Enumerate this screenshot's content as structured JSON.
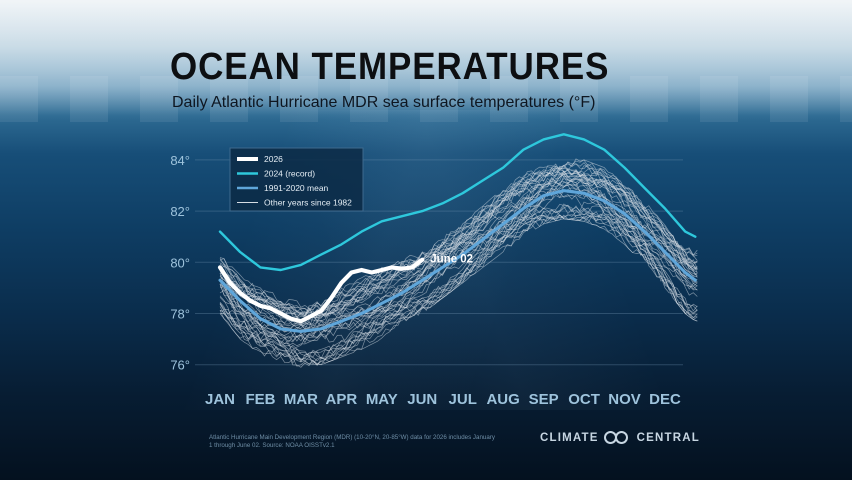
{
  "header": {
    "title": "OCEAN TEMPERATURES",
    "subtitle": "Daily Atlantic Hurricane MDR sea surface temperatures (°F)"
  },
  "footer": {
    "note": "Atlantic Hurricane Main Development Region (MDR) (10-20°N, 20-85°W) data for 2026 includes January 1 through June 02. Source: NOAA OISSTv2.1",
    "logo_left": "CLIMATE",
    "logo_right": "CENTRAL",
    "logo_icon": "linked-circles-icon"
  },
  "colors": {
    "current": "#ffffff",
    "record": "#2ec8dc",
    "mean": "#5fa6da",
    "others": "#d6dde3",
    "axis_text": "#9ec3dc"
  },
  "chart_data": {
    "type": "line",
    "title": "OCEAN TEMPERATURES",
    "subtitle": "Daily Atlantic Hurricane MDR sea surface temperatures (°F)",
    "xlabel": "",
    "ylabel": "",
    "ylim": [
      75.5,
      85.5
    ],
    "yticks": [
      76,
      78,
      80,
      82,
      84
    ],
    "ytick_labels": [
      "76°",
      "78°",
      "80°",
      "82°",
      "84°"
    ],
    "categories": [
      "JAN",
      "FEB",
      "MAR",
      "APR",
      "MAY",
      "JUN",
      "JUL",
      "AUG",
      "SEP",
      "OCT",
      "NOV",
      "DEC"
    ],
    "grid": true,
    "legend": {
      "placement": "top-left",
      "entries": [
        "2026",
        "2024 (record)",
        "1991-2020 mean",
        "Other years since 1982"
      ]
    },
    "annotation": "June 02",
    "series": [
      {
        "name": "2026",
        "role": "current",
        "x": [
          0,
          0.25,
          0.5,
          0.75,
          1,
          1.25,
          1.5,
          1.75,
          2,
          2.25,
          2.5,
          2.75,
          3,
          3.25,
          3.5,
          3.75,
          4,
          4.25,
          4.5,
          4.75,
          5.0
        ],
        "y": [
          79.8,
          79.2,
          78.8,
          78.5,
          78.3,
          78.2,
          78.0,
          77.8,
          77.7,
          77.9,
          78.1,
          78.6,
          79.2,
          79.6,
          79.7,
          79.6,
          79.7,
          79.8,
          79.75,
          79.8,
          80.1
        ]
      },
      {
        "name": "2024 (record)",
        "role": "record",
        "x": [
          0,
          0.5,
          1,
          1.5,
          2,
          2.5,
          3,
          3.5,
          4,
          4.5,
          5,
          5.5,
          6,
          6.5,
          7,
          7.5,
          8,
          8.5,
          9,
          9.5,
          10,
          10.5,
          11,
          11.5,
          11.75
        ],
        "y": [
          81.2,
          80.4,
          79.8,
          79.7,
          79.9,
          80.3,
          80.7,
          81.2,
          81.6,
          81.8,
          82.0,
          82.3,
          82.7,
          83.2,
          83.7,
          84.4,
          84.8,
          85.0,
          84.8,
          84.4,
          83.7,
          82.9,
          82.1,
          81.2,
          81.0
        ]
      },
      {
        "name": "1991-2020 mean",
        "role": "mean",
        "x": [
          0,
          0.5,
          1,
          1.5,
          2,
          2.5,
          3,
          3.5,
          4,
          4.5,
          5,
          5.5,
          6,
          6.5,
          7,
          7.5,
          8,
          8.5,
          9,
          9.5,
          10,
          10.5,
          11,
          11.5,
          11.75
        ],
        "y": [
          79.3,
          78.5,
          77.8,
          77.4,
          77.3,
          77.4,
          77.7,
          78.0,
          78.4,
          78.8,
          79.3,
          79.8,
          80.3,
          80.9,
          81.5,
          82.1,
          82.6,
          82.8,
          82.7,
          82.4,
          81.9,
          81.2,
          80.4,
          79.6,
          79.3
        ]
      }
    ],
    "other_years_band": {
      "label": "Other years since 1982",
      "count": 40,
      "x": [
        0,
        0.5,
        1,
        1.5,
        2,
        2.5,
        3,
        3.5,
        4,
        4.5,
        5,
        5.5,
        6,
        6.5,
        7,
        7.5,
        8,
        8.5,
        9,
        9.5,
        10,
        10.5,
        11,
        11.5,
        11.75
      ],
      "low": [
        78.0,
        77.0,
        76.4,
        76.1,
        75.9,
        76.0,
        76.3,
        76.6,
        77.0,
        77.5,
        78.0,
        78.6,
        79.2,
        79.8,
        80.4,
        81.0,
        81.5,
        81.7,
        81.6,
        81.3,
        80.7,
        79.9,
        79.0,
        78.0,
        77.7
      ],
      "high": [
        80.3,
        79.5,
        79.0,
        78.7,
        78.5,
        78.7,
        79.0,
        79.4,
        79.8,
        80.2,
        80.6,
        81.1,
        81.6,
        82.2,
        82.9,
        83.5,
        83.9,
        84.1,
        84.0,
        83.7,
        83.1,
        82.4,
        81.7,
        80.8,
        80.5
      ]
    }
  }
}
